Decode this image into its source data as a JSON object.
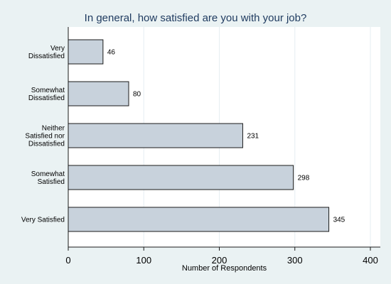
{
  "chart_data": {
    "type": "bar",
    "orientation": "horizontal",
    "title": "In general, how satisfied are you with your job?",
    "xlabel": "Number of Respondents",
    "ylabel": "",
    "categories": [
      [
        "Very",
        "Dissatisfied"
      ],
      [
        "Somewhat",
        "Dissatisfied"
      ],
      [
        "Neither",
        "Satisfied nor",
        "Dissatisfied"
      ],
      [
        "Somewhat",
        "Satisfied"
      ],
      [
        "Very Satisfied"
      ]
    ],
    "values": [
      46,
      80,
      231,
      298,
      345
    ],
    "value_labels": [
      "46",
      "80",
      "231",
      "298",
      "345"
    ],
    "xlim": [
      0,
      400
    ],
    "xticks": [
      0,
      100,
      200,
      300,
      400
    ],
    "xtick_labels": [
      "0",
      "100",
      "200",
      "300",
      "400"
    ],
    "grid": true,
    "legend": "none",
    "colors": {
      "background": "#eaf2f3",
      "plot_background": "#ffffff",
      "bar_fill": "#c8d2dc",
      "bar_stroke": "#1a1a1a",
      "grid": "#e6eef2",
      "title": "#1e3a5f"
    }
  }
}
